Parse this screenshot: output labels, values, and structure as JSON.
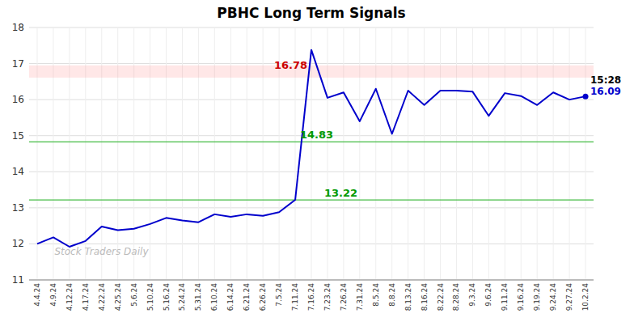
{
  "chart_data": {
    "type": "line",
    "title": "PBHC Long Term Signals",
    "categories": [
      "4.4.24",
      "4.9.24",
      "4.12.24",
      "4.17.24",
      "4.22.24",
      "4.25.24",
      "5.6.24",
      "5.10.24",
      "5.16.24",
      "5.24.24",
      "5.31.24",
      "6.10.24",
      "6.14.24",
      "6.21.24",
      "6.26.24",
      "7.5.24",
      "7.11.24",
      "7.16.24",
      "7.23.24",
      "7.26.24",
      "7.31.24",
      "8.5.24",
      "8.8.24",
      "8.13.24",
      "8.16.24",
      "8.22.24",
      "8.28.24",
      "9.3.24",
      "9.6.24",
      "9.11.24",
      "9.16.24",
      "9.19.24",
      "9.24.24",
      "9.27.24",
      "10.2.24"
    ],
    "values": [
      12.0,
      12.18,
      11.92,
      12.08,
      12.48,
      12.38,
      12.42,
      12.55,
      12.72,
      12.65,
      12.6,
      12.82,
      12.75,
      12.82,
      12.78,
      12.88,
      13.22,
      17.38,
      16.05,
      16.2,
      15.4,
      16.3,
      15.05,
      16.25,
      15.85,
      16.25,
      16.25,
      16.22,
      15.55,
      16.18,
      16.1,
      15.85,
      16.2,
      16.0,
      16.09
    ],
    "color": "#0000cc",
    "ylim": [
      11,
      18
    ],
    "yticks": [
      11,
      12,
      13,
      14,
      15,
      16,
      17,
      18
    ],
    "grid": true,
    "bands": [
      {
        "from": 16.61,
        "to": 16.95,
        "color": "#ff8888"
      }
    ],
    "lines": [
      {
        "y": 14.83,
        "color": "#44bb44"
      },
      {
        "y": 13.22,
        "color": "#44bb44"
      }
    ],
    "annotations": [
      {
        "text": "16.78",
        "x": "7.16.24",
        "y": 16.78,
        "color": "#cc0000"
      },
      {
        "text": "14.83",
        "x": "7.11.24",
        "y": 14.83,
        "color": "#009900"
      },
      {
        "text": "13.22",
        "x": "7.11.24",
        "y": 13.22,
        "color": "#009900"
      },
      {
        "text": "15:28",
        "x": "10.2.24",
        "color": "#000000"
      },
      {
        "text": "16.09",
        "x": "10.2.24",
        "y": 16.09,
        "color": "#0000cc"
      },
      {
        "text": "Stock Traders Daily",
        "color": "#bbbbbb"
      }
    ]
  }
}
